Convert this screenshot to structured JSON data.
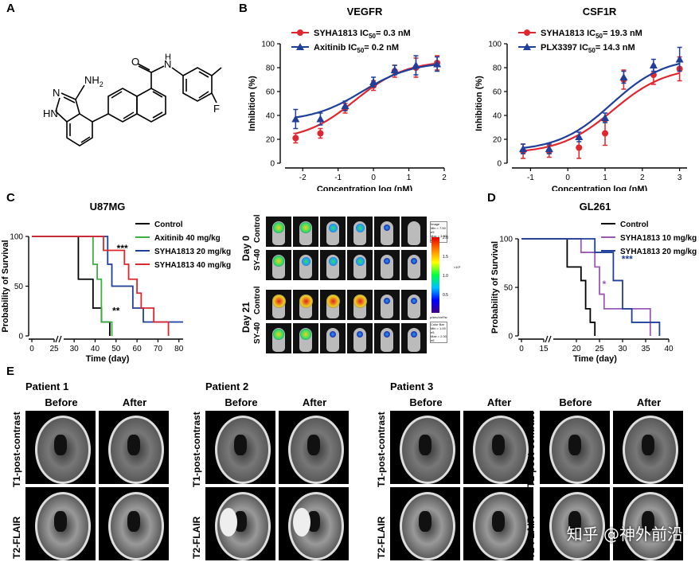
{
  "panels": {
    "A": "A",
    "B": "B",
    "C": "C",
    "D": "D",
    "E": "E"
  },
  "structure": {
    "nh2": "NH",
    "nh2_sub": "2",
    "o": "O",
    "n": "N",
    "h": "H",
    "hn": "HN",
    "f": "F"
  },
  "colors": {
    "red": "#e0262e",
    "blue": "#1f3f9b",
    "green": "#3cb043",
    "purple": "#9b59b6",
    "black": "#000000"
  },
  "chart_data": [
    {
      "id": "vegfr",
      "type": "line",
      "title": "VEGFR",
      "xlabel": "Concentration log (nM)",
      "ylabel": "Inhibition (%)",
      "xlim": [
        -2.5,
        2
      ],
      "ylim": [
        0,
        100
      ],
      "xticks": [
        "-2",
        "-1",
        "0",
        "1",
        "2"
      ],
      "yticks": [
        "0",
        "20",
        "40",
        "60",
        "80",
        "100"
      ],
      "series": [
        {
          "name": "SYHA1813",
          "ic50_label": "IC",
          "ic50_sub": "50",
          "ic50_value": "= 0.3 nM",
          "color": "#e0262e",
          "marker": "circle",
          "x": [
            -2.2,
            -1.5,
            -0.8,
            0,
            0.6,
            1.2,
            1.8
          ],
          "y": [
            21,
            25,
            46,
            65,
            77,
            80,
            84
          ],
          "err": [
            4,
            4,
            4,
            4,
            5,
            8,
            6
          ]
        },
        {
          "name": "Axitinib",
          "ic50_label": "IC",
          "ic50_sub": "50",
          "ic50_value": "= 0.2 nM",
          "color": "#1f3f9b",
          "marker": "triangle",
          "x": [
            -2.2,
            -1.5,
            -0.8,
            0,
            0.6,
            1.2,
            1.8
          ],
          "y": [
            37,
            37,
            48,
            68,
            78,
            82,
            83
          ],
          "err": [
            8,
            5,
            4,
            4,
            4,
            8,
            6
          ]
        }
      ]
    },
    {
      "id": "csf1r",
      "type": "line",
      "title": "CSF1R",
      "xlabel": "Concentration log (nM)",
      "ylabel": "Inhibition (%)",
      "xlim": [
        -1.5,
        3.2
      ],
      "ylim": [
        0,
        100
      ],
      "xticks": [
        "-1",
        "0",
        "1",
        "2",
        "3"
      ],
      "yticks": [
        "0",
        "20",
        "40",
        "60",
        "80",
        "100"
      ],
      "series": [
        {
          "name": "SYHA1813",
          "ic50_label": "IC",
          "ic50_sub": "50",
          "ic50_value": "= 19.3 nM",
          "color": "#e0262e",
          "marker": "circle",
          "x": [
            -1.2,
            -0.5,
            0.3,
            1,
            1.5,
            2.3,
            3
          ],
          "y": [
            10,
            10,
            13,
            25,
            70,
            74,
            79
          ],
          "err": [
            6,
            5,
            9,
            10,
            8,
            8,
            10
          ]
        },
        {
          "name": "PLX3397",
          "ic50_label": "IC",
          "ic50_sub": "50",
          "ic50_value": "= 14.3 nM",
          "color": "#1f3f9b",
          "marker": "triangle",
          "x": [
            -1.2,
            -0.5,
            0.3,
            1,
            1.5,
            2.3,
            3
          ],
          "y": [
            12,
            12,
            22,
            38,
            72,
            82,
            87
          ],
          "err": [
            4,
            4,
            4,
            4,
            5,
            5,
            10
          ]
        }
      ]
    },
    {
      "id": "u87mg",
      "type": "line",
      "title": "U87MG",
      "xlabel": "Time (day)",
      "ylabel": "Probability of Survival",
      "xlim": [
        0,
        82
      ],
      "ylim": [
        0,
        100
      ],
      "xticks": [
        "0",
        "25",
        "30",
        "40",
        "50",
        "60",
        "70",
        "80"
      ],
      "yticks": [
        "0",
        "50",
        "100"
      ],
      "annotations": [
        "***",
        "**"
      ],
      "series": [
        {
          "name": "Control",
          "color": "#000000",
          "steps": [
            [
              30,
              100
            ],
            [
              32,
              57
            ],
            [
              39,
              28
            ],
            [
              43,
              14
            ],
            [
              47,
              0
            ]
          ]
        },
        {
          "name": "Axitinib 40 mg/kg",
          "color": "#3cb043",
          "steps": [
            [
              30,
              100
            ],
            [
              39,
              72
            ],
            [
              41,
              57
            ],
            [
              43,
              14
            ],
            [
              48,
              0
            ]
          ]
        },
        {
          "name": "SYHA1813 20 mg/kg",
          "color": "#1f3f9b",
          "steps": [
            [
              30,
              100
            ],
            [
              46,
              72
            ],
            [
              48,
              50
            ],
            [
              55,
              50
            ],
            [
              58,
              28
            ],
            [
              63,
              14
            ],
            [
              82,
              14
            ]
          ]
        },
        {
          "name": "SYHA1813 40 mg/kg",
          "color": "#e0262e",
          "steps": [
            [
              30,
              100
            ],
            [
              44,
              86
            ],
            [
              54,
              72
            ],
            [
              56,
              57
            ],
            [
              60,
              43
            ],
            [
              62,
              28
            ],
            [
              68,
              14
            ],
            [
              75,
              0
            ]
          ]
        }
      ]
    },
    {
      "id": "gl261",
      "type": "line",
      "title": "GL261",
      "xlabel": "Time (day)",
      "ylabel": "Probability of Survival",
      "xlim": [
        0,
        40
      ],
      "ylim": [
        0,
        100
      ],
      "xticks": [
        "0",
        "15",
        "20",
        "25",
        "30",
        "35",
        "40"
      ],
      "yticks": [
        "0",
        "50",
        "100"
      ],
      "annotations": [
        "*",
        "***"
      ],
      "series": [
        {
          "name": "Control",
          "color": "#000000",
          "steps": [
            [
              16,
              100
            ],
            [
              18,
              71
            ],
            [
              21,
              57
            ],
            [
              22,
              28
            ],
            [
              23,
              14
            ],
            [
              24,
              0
            ]
          ]
        },
        {
          "name": "SYHA1813 10 mg/kg",
          "color": "#9b59b6",
          "steps": [
            [
              16,
              100
            ],
            [
              21,
              86
            ],
            [
              24,
              71
            ],
            [
              25,
              43
            ],
            [
              26,
              28
            ],
            [
              36,
              0
            ]
          ]
        },
        {
          "name": "SYHA1813 20 mg/kg",
          "color": "#1f3f9b",
          "steps": [
            [
              16,
              100
            ],
            [
              22,
              100
            ],
            [
              24,
              86
            ],
            [
              28,
              57
            ],
            [
              30,
              28
            ],
            [
              32,
              14
            ],
            [
              38,
              0
            ]
          ]
        }
      ]
    }
  ],
  "imaging": {
    "day0": "Day 0",
    "day21": "Day 21",
    "control": "Control",
    "sy40": "SY-40",
    "scale_top": [
      "Image",
      "Min = 7.50 e5",
      "Max = 3.00 e6"
    ],
    "scale_ticks": [
      "2.0",
      "1.5",
      "1.0",
      "0.5"
    ],
    "scale_unit": "×10⁶",
    "scale_caption": "p/sec/cm²/sr",
    "scale_bottom": [
      "Color Bar",
      "Min = 1.00 e5",
      "Max = 2.00 e6"
    ]
  },
  "mri": {
    "patients": [
      "Patient 1",
      "Patient 2",
      "Patient 3"
    ],
    "before": "Before",
    "after": "After",
    "t1": "T1-post-contrast",
    "t2": "T2-FLAIR"
  },
  "watermark": "知乎 @神外前沿"
}
